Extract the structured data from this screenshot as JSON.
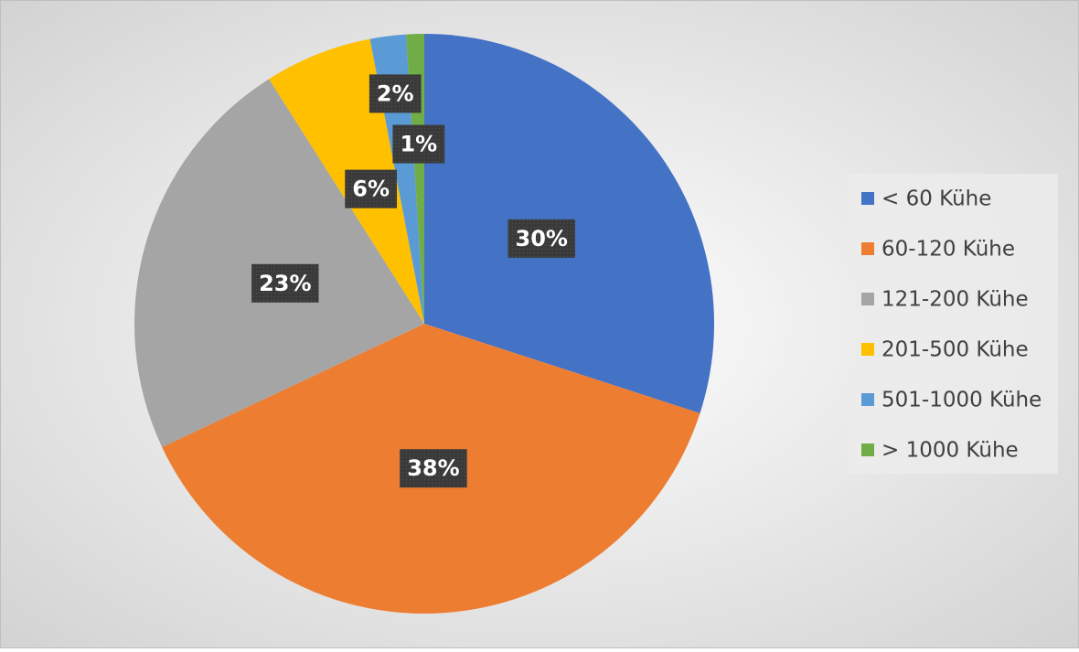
{
  "chart_data": {
    "type": "pie",
    "categories": [
      "< 60 Kühe",
      "60-120 Kühe",
      "121-200 Kühe",
      "201-500 Kühe",
      "501-1000 Kühe",
      "> 1000 Kühe"
    ],
    "values": [
      30,
      38,
      23,
      6,
      2,
      1
    ],
    "value_labels": [
      "30%",
      "38%",
      "23%",
      "6%",
      "2%",
      "1%"
    ],
    "colors": [
      "#4472c4",
      "#ed7d31",
      "#a5a5a5",
      "#ffc000",
      "#5b9bd5",
      "#70ad47"
    ],
    "legend": "right"
  }
}
